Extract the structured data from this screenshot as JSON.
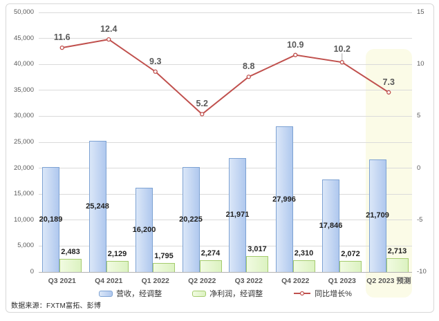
{
  "chart": {
    "source_note": "数据来源：FXTM富拓、彭博",
    "highlight_color": "#fbfbe7",
    "gridline_color": "#dadada",
    "axis_line_color": "#b0b0b0",
    "axis_text_color": "#595959"
  },
  "chart_data": {
    "type": "combo-bar-line",
    "categories": [
      "Q3 2021",
      "Q4 2021",
      "Q1 2022",
      "Q2 2022",
      "Q3 2022",
      "Q4 2022",
      "Q1 2023",
      "Q2 2023 预测"
    ],
    "highlight_category_index": 7,
    "left_axis": {
      "min": 0,
      "max": 50000,
      "step": 5000,
      "tick_labels": [
        "0",
        "5,000",
        "10,000",
        "15,000",
        "20,000",
        "25,000",
        "30,000",
        "35,000",
        "40,000",
        "45,000",
        "50,000"
      ]
    },
    "right_axis": {
      "min": -10,
      "max": 15,
      "step": 5,
      "tick_labels": [
        "-10",
        "-5",
        "0",
        "5",
        "10",
        "15"
      ]
    },
    "series": [
      {
        "name": "营收，经调整",
        "type": "bar",
        "axis": "left",
        "values": [
          20189,
          25248,
          16200,
          20225,
          21971,
          27996,
          17846,
          21709
        ],
        "data_labels": [
          "20,189",
          "25,248",
          "16,200",
          "20,225",
          "21,971",
          "27,996",
          "17,846",
          "21,709"
        ],
        "fill_from": "#dbe7f8",
        "fill_to": "#b0c8ee",
        "border_color": "#7da2d3"
      },
      {
        "name": "净利润，经调整",
        "type": "bar",
        "axis": "left",
        "values": [
          2483,
          2129,
          1795,
          2274,
          3017,
          2310,
          2072,
          2713
        ],
        "data_labels": [
          "2,483",
          "2,129",
          "1,795",
          "2,274",
          "3,017",
          "2,310",
          "2,072",
          "2,713"
        ],
        "fill_from": "#f1fbe1",
        "fill_to": "#dcf2c1",
        "border_color": "#a4cb6d"
      },
      {
        "name": "同比增长%",
        "type": "line",
        "axis": "right",
        "values": [
          11.6,
          12.4,
          9.3,
          5.2,
          8.8,
          10.9,
          10.2,
          7.3
        ],
        "data_labels": [
          "11.6",
          "12.4",
          "9.3",
          "5.2",
          "8.8",
          "10.9",
          "10.2",
          "7.3"
        ],
        "line_color": "#c0504d",
        "marker_fill": "#ffffff"
      }
    ],
    "legend": {
      "position": "bottom",
      "entries": [
        "营收，经调整",
        "净利润，经调整",
        "同比增长%"
      ]
    }
  }
}
